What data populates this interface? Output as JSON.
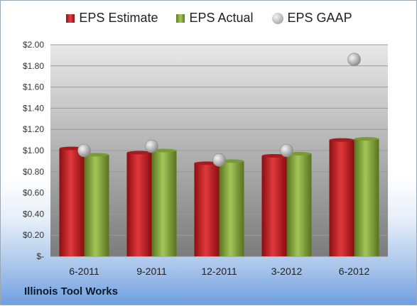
{
  "chart_data": {
    "type": "bar",
    "categories": [
      "6-2011",
      "9-2011",
      "12-2011",
      "3-2012",
      "6-2012"
    ],
    "series": [
      {
        "name": "EPS Estimate",
        "values": [
          1.02,
          0.98,
          0.88,
          0.95,
          1.1
        ],
        "color": "#c8262a"
      },
      {
        "name": "EPS Actual",
        "values": [
          0.96,
          1.0,
          0.9,
          0.97,
          1.11
        ],
        "color": "#8db043"
      }
    ],
    "gaap": {
      "name": "EPS GAAP",
      "values": [
        1.0,
        1.04,
        0.91,
        1.0,
        1.86
      ],
      "color": "#b0b0b0"
    },
    "y_ticks": [
      "$-",
      "$0.20",
      "$0.40",
      "$0.60",
      "$0.80",
      "$1.00",
      "$1.20",
      "$1.40",
      "$1.60",
      "$1.80",
      "$2.00"
    ],
    "ylim": [
      0,
      2.0
    ],
    "grid": true,
    "legend_position": "top"
  },
  "footer": {
    "company": "Illinois Tool Works"
  }
}
